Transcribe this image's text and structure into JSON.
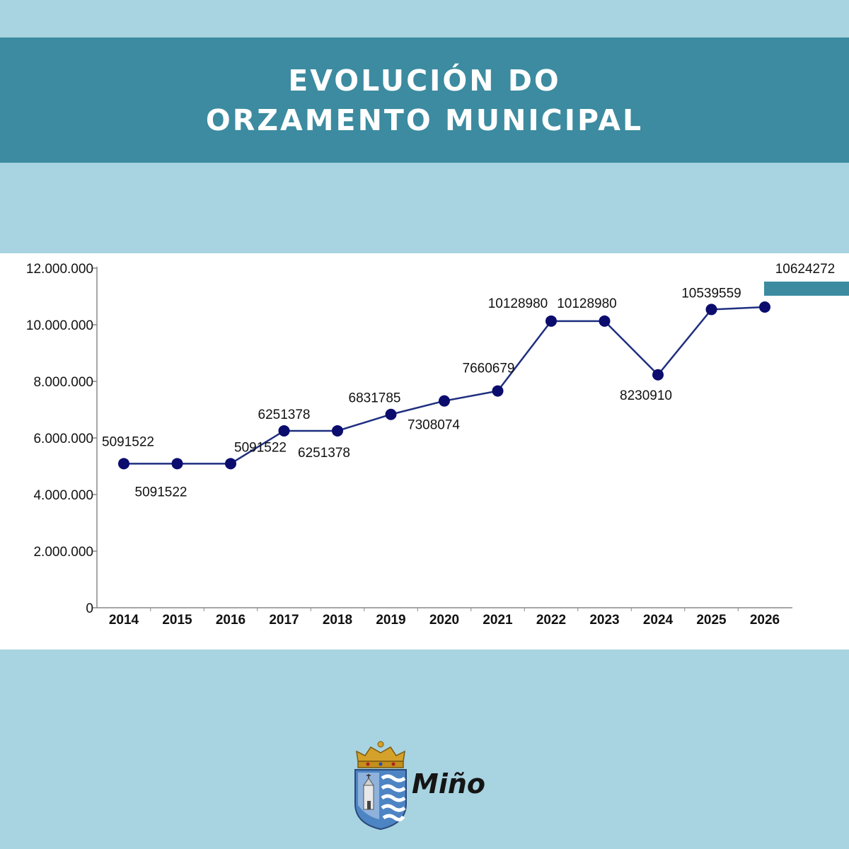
{
  "header": {
    "title_line1": "EVOLUCIÓN DO",
    "title_line2": "ORZAMENTO MUNICIPAL"
  },
  "logo": {
    "text": "Miño"
  },
  "colors": {
    "background": "#a8d3e0",
    "banner": "#3c8ba0",
    "line": "#1f2f80",
    "marker": "#0b0c6e",
    "accent_bar": "#3c8ba0"
  },
  "chart_data": {
    "type": "line",
    "title": "",
    "xlabel": "",
    "ylabel": "",
    "categories": [
      "2014",
      "2015",
      "2016",
      "2017",
      "2018",
      "2019",
      "2020",
      "2021",
      "2022",
      "2023",
      "2024",
      "2025",
      "2026"
    ],
    "values": [
      5091522,
      5091522,
      5091522,
      6251378,
      6251378,
      6831785,
      7308074,
      7660679,
      10128980,
      10128980,
      8230910,
      10539559,
      10624272
    ],
    "data_labels": [
      "5091522",
      "5091522",
      "5091522",
      "6251378",
      "6251378",
      "6831785",
      "7308074",
      "7660679",
      "10128980",
      "10128980",
      "8230910",
      "10539559",
      "10624272"
    ],
    "ylim": [
      0,
      12000000
    ],
    "y_ticks": [
      0,
      2000000,
      4000000,
      6000000,
      8000000,
      10000000,
      12000000
    ],
    "y_tick_labels": [
      "0",
      "2.000.000",
      "4.000.000",
      "6.000.000",
      "8.000.000",
      "10.000.000",
      "12.000.000"
    ],
    "grid": false,
    "legend": "none"
  }
}
